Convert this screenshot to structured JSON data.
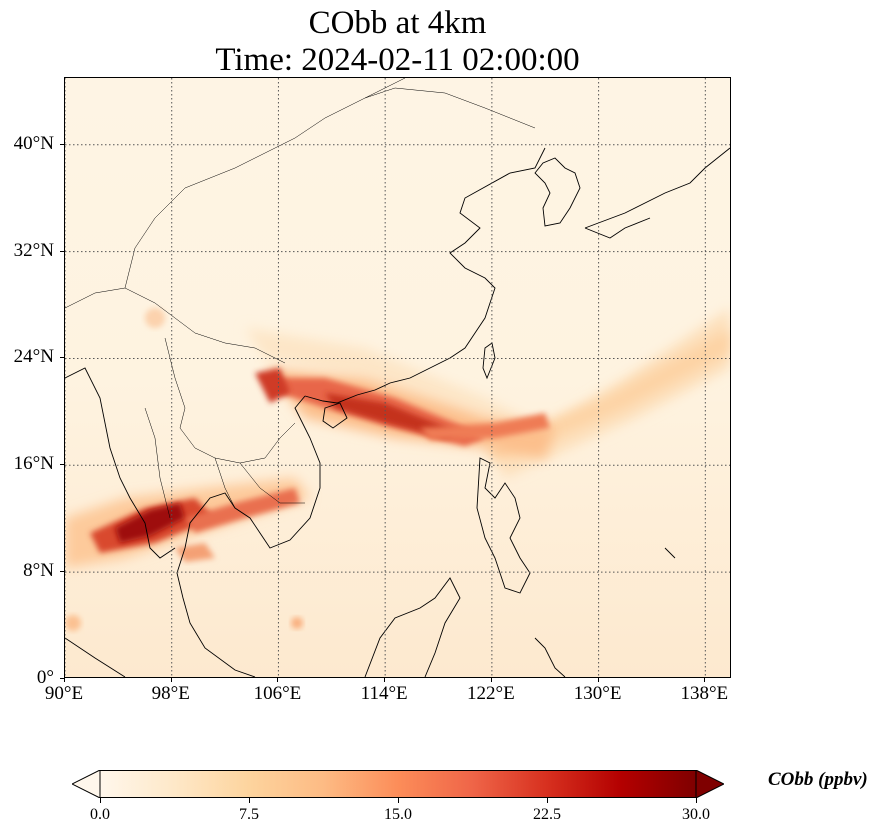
{
  "title": {
    "line1": "CObb at 4km",
    "line2": "Time: 2024-02-11 02:00:00"
  },
  "map": {
    "extent": {
      "lon_min": 90,
      "lon_max": 140,
      "lat_min": 0,
      "lat_max": 45
    },
    "lat_ticks": [
      {
        "value": 0,
        "label": "0°"
      },
      {
        "value": 8,
        "label": "8°N"
      },
      {
        "value": 16,
        "label": "16°N"
      },
      {
        "value": 24,
        "label": "24°N"
      },
      {
        "value": 32,
        "label": "32°N"
      },
      {
        "value": 40,
        "label": "40°N"
      }
    ],
    "lon_ticks": [
      {
        "value": 90,
        "label": "90°E"
      },
      {
        "value": 98,
        "label": "98°E"
      },
      {
        "value": 106,
        "label": "106°E"
      },
      {
        "value": 114,
        "label": "114°E"
      },
      {
        "value": 122,
        "label": "122°E"
      },
      {
        "value": 130,
        "label": "130°E"
      },
      {
        "value": 138,
        "label": "138°E"
      }
    ],
    "gridlines": "dotted"
  },
  "colorbar": {
    "label": "CObb (ppbv)",
    "min": 0.0,
    "max": 30.0,
    "ticks": [
      "0.0",
      "7.5",
      "15.0",
      "22.5",
      "30.0"
    ],
    "colormap": "OrRd",
    "colors": [
      "#fff7ec",
      "#fee8c8",
      "#fdd49e",
      "#fdbb84",
      "#fc8d59",
      "#ef6548",
      "#d7301f",
      "#b30000",
      "#7f0000"
    ]
  }
}
